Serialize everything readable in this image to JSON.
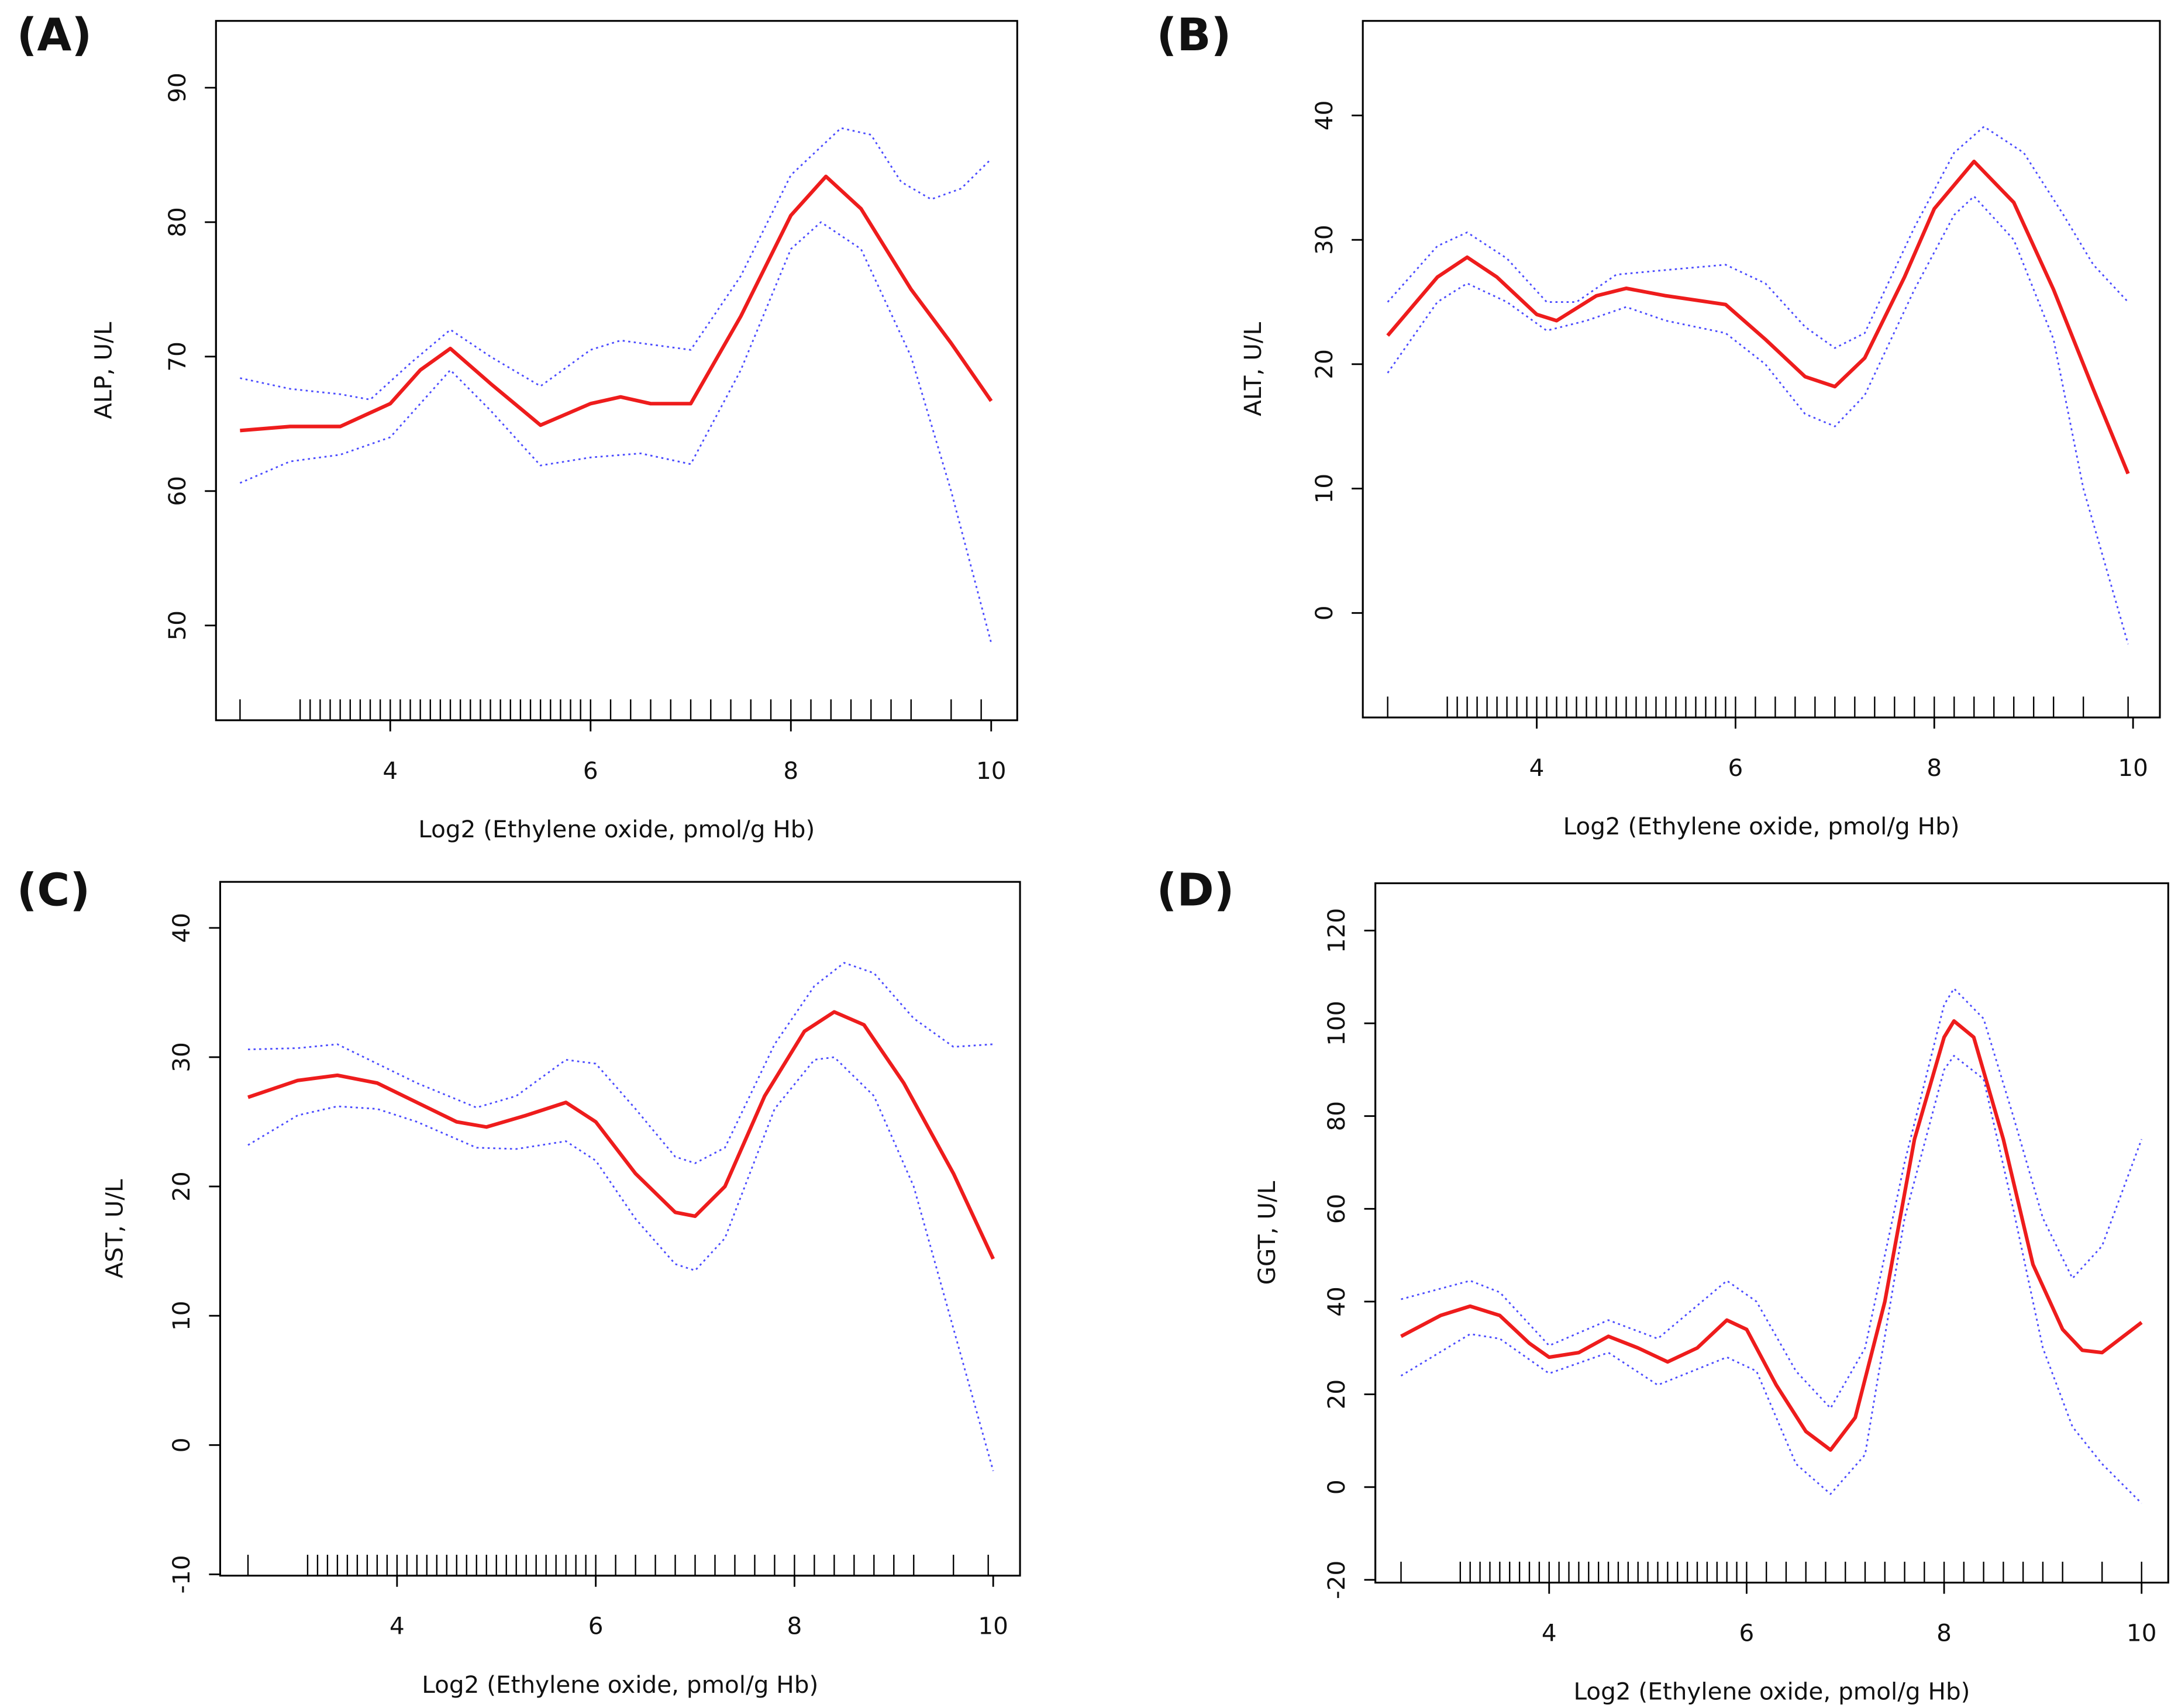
{
  "chart_data": [
    {
      "type": "line",
      "panel_label": "(A)",
      "x_label": "Log2 (Ethylene oxide, pmol/g Hb)",
      "y_label": "ALP, U/L",
      "xlim": [
        2.26,
        10.26
      ],
      "ylim": [
        42.95,
        94.97
      ],
      "xticks": [
        4,
        6,
        8,
        10
      ],
      "yticks": [
        50,
        60,
        70,
        80,
        90
      ],
      "series": [
        {
          "color": "#ee1c1c",
          "dash": "solid",
          "x": [
            2.5,
            3,
            3.5,
            4,
            4.3,
            4.6,
            5,
            5.5,
            6,
            6.3,
            6.6,
            7,
            7.5,
            8,
            8.35,
            8.7,
            9.2,
            9.6,
            10
          ],
          "values": [
            64.5,
            64.8,
            64.8,
            66.5,
            69,
            70.6,
            68,
            64.9,
            66.5,
            67,
            66.5,
            66.5,
            73,
            80.5,
            83.4,
            81,
            75,
            71,
            66.7
          ]
        },
        {
          "color": "#4b4bff",
          "dash": "dotted",
          "x": [
            2.5,
            3,
            3.5,
            3.8,
            4.2,
            4.6,
            5,
            5.5,
            6,
            6.3,
            7,
            7.5,
            8,
            8.5,
            8.8,
            9.1,
            9.4,
            9.7,
            10
          ],
          "values": [
            68.4,
            67.6,
            67.2,
            66.8,
            69.5,
            72,
            70,
            67.8,
            70.5,
            71.2,
            70.5,
            76,
            83.5,
            87,
            86.5,
            83,
            81.7,
            82.5,
            84.7
          ]
        },
        {
          "color": "#4b4bff",
          "dash": "dotted",
          "x": [
            2.5,
            3,
            3.5,
            4,
            4.6,
            5,
            5.5,
            6,
            6.5,
            7,
            7.5,
            8,
            8.3,
            8.7,
            9.2,
            9.6,
            10
          ],
          "values": [
            60.6,
            62.2,
            62.7,
            64,
            69,
            66,
            61.9,
            62.5,
            62.8,
            62,
            69,
            78,
            80,
            78,
            70,
            60,
            48.7
          ]
        }
      ],
      "rug": [
        2.5,
        3.1,
        3.2,
        3.3,
        3.4,
        3.5,
        3.6,
        3.7,
        3.8,
        3.9,
        4.0,
        4.1,
        4.2,
        4.3,
        4.4,
        4.5,
        4.6,
        4.7,
        4.8,
        4.9,
        5.0,
        5.1,
        5.2,
        5.3,
        5.4,
        5.5,
        5.6,
        5.7,
        5.8,
        5.9,
        6.0,
        6.2,
        6.4,
        6.6,
        6.8,
        7.0,
        7.2,
        7.4,
        7.6,
        7.8,
        8.0,
        8.2,
        8.4,
        8.6,
        8.8,
        9.0,
        9.2,
        9.6,
        9.9
      ]
    },
    {
      "type": "line",
      "panel_label": "(B)",
      "x_label": "Log2 (Ethylene oxide, pmol/g Hb)",
      "y_label": "ALT, U/L",
      "xlim": [
        2.25,
        10.27
      ],
      "ylim": [
        -8.4,
        47.6
      ],
      "xticks": [
        4,
        6,
        8,
        10
      ],
      "yticks": [
        0,
        10,
        20,
        30,
        40
      ],
      "series": [
        {
          "color": "#ee1c1c",
          "dash": "solid",
          "x": [
            2.5,
            3,
            3.3,
            3.6,
            4,
            4.2,
            4.6,
            4.9,
            5.3,
            5.9,
            6.3,
            6.7,
            7,
            7.3,
            7.7,
            8,
            8.4,
            8.8,
            9.2,
            9.6,
            9.95
          ],
          "values": [
            22.3,
            27,
            28.6,
            27,
            24,
            23.5,
            25.5,
            26.1,
            25.5,
            24.8,
            22,
            19,
            18.2,
            20.5,
            27,
            32.5,
            36.3,
            33,
            26,
            18,
            11.2
          ]
        },
        {
          "color": "#4b4bff",
          "dash": "dotted",
          "x": [
            2.5,
            3,
            3.3,
            3.7,
            4.1,
            4.4,
            4.8,
            5.2,
            5.9,
            6.3,
            6.7,
            7,
            7.3,
            7.8,
            8.2,
            8.5,
            8.9,
            9.3,
            9.6,
            9.95
          ],
          "values": [
            25,
            29.5,
            30.6,
            28.5,
            25,
            25,
            27.2,
            27.5,
            28,
            26.5,
            23,
            21.3,
            22.5,
            31,
            37,
            39.1,
            37,
            32,
            28,
            25
          ]
        },
        {
          "color": "#4b4bff",
          "dash": "dotted",
          "x": [
            2.5,
            3,
            3.3,
            3.7,
            4.1,
            4.5,
            4.9,
            5.3,
            5.9,
            6.3,
            6.7,
            7,
            7.3,
            7.8,
            8.2,
            8.4,
            8.8,
            9.2,
            9.5,
            9.95
          ],
          "values": [
            19.3,
            25,
            26.5,
            25,
            22.7,
            23.5,
            24.6,
            23.5,
            22.5,
            20,
            16,
            15,
            17.5,
            26,
            32,
            33.5,
            30,
            22,
            10,
            -2.5
          ]
        }
      ],
      "rug": [
        2.5,
        3.1,
        3.2,
        3.3,
        3.4,
        3.5,
        3.6,
        3.7,
        3.8,
        3.9,
        4.0,
        4.1,
        4.2,
        4.3,
        4.4,
        4.5,
        4.6,
        4.7,
        4.8,
        4.9,
        5.0,
        5.1,
        5.2,
        5.3,
        5.4,
        5.5,
        5.6,
        5.7,
        5.8,
        5.9,
        6.0,
        6.2,
        6.4,
        6.6,
        6.8,
        7.0,
        7.2,
        7.4,
        7.6,
        7.8,
        8.0,
        8.2,
        8.4,
        8.6,
        8.8,
        9.0,
        9.2,
        9.5,
        9.95
      ]
    },
    {
      "type": "line",
      "panel_label": "(C)",
      "x_label": "Log2 (Ethylene oxide, pmol/g Hb)",
      "y_label": "AST, U/L",
      "xlim": [
        2.22,
        10.27
      ],
      "ylim": [
        -10.1,
        43.56
      ],
      "xticks": [
        4,
        6,
        8,
        10
      ],
      "yticks": [
        -10,
        0,
        10,
        20,
        30,
        40
      ],
      "series": [
        {
          "color": "#ee1c1c",
          "dash": "solid",
          "x": [
            2.5,
            3,
            3.4,
            3.8,
            4.2,
            4.6,
            4.9,
            5.3,
            5.7,
            6,
            6.4,
            6.8,
            7,
            7.3,
            7.7,
            8.1,
            8.4,
            8.7,
            9.1,
            9.6,
            10
          ],
          "values": [
            26.9,
            28.2,
            28.6,
            28,
            26.5,
            25,
            24.6,
            25.5,
            26.5,
            25,
            21,
            18,
            17.7,
            20,
            27,
            32,
            33.5,
            32.5,
            28,
            21,
            14.4
          ]
        },
        {
          "color": "#4b4bff",
          "dash": "dotted",
          "x": [
            2.5,
            3,
            3.4,
            3.8,
            4.2,
            4.8,
            5.2,
            5.7,
            6,
            6.4,
            6.8,
            7,
            7.3,
            7.8,
            8.2,
            8.5,
            8.8,
            9.2,
            9.6,
            10
          ],
          "values": [
            30.6,
            30.7,
            31,
            29.5,
            28,
            26.1,
            27,
            29.8,
            29.5,
            26,
            22.3,
            21.8,
            23,
            31,
            35.5,
            37.3,
            36.5,
            33,
            30.8,
            31
          ]
        },
        {
          "color": "#4b4bff",
          "dash": "dotted",
          "x": [
            2.5,
            3,
            3.4,
            3.8,
            4.2,
            4.8,
            5.2,
            5.7,
            6,
            6.4,
            6.8,
            7,
            7.3,
            7.8,
            8.2,
            8.4,
            8.8,
            9.2,
            9.6,
            10
          ],
          "values": [
            23.2,
            25.5,
            26.2,
            26,
            25,
            23,
            22.9,
            23.5,
            22,
            17.5,
            14,
            13.5,
            16,
            26,
            29.8,
            30,
            27,
            20,
            9,
            -2
          ]
        }
      ],
      "rug": [
        2.5,
        3.1,
        3.2,
        3.3,
        3.4,
        3.5,
        3.6,
        3.7,
        3.8,
        3.9,
        4.0,
        4.1,
        4.2,
        4.3,
        4.4,
        4.5,
        4.6,
        4.7,
        4.8,
        4.9,
        5.0,
        5.1,
        5.2,
        5.3,
        5.4,
        5.5,
        5.6,
        5.7,
        5.8,
        5.9,
        6.0,
        6.2,
        6.4,
        6.6,
        6.8,
        7.0,
        7.2,
        7.4,
        7.6,
        7.8,
        8.0,
        8.2,
        8.4,
        8.6,
        8.8,
        9.0,
        9.2,
        9.6,
        9.95
      ]
    },
    {
      "type": "line",
      "panel_label": "(D)",
      "x_label": "Log2 (Ethylene oxide, pmol/g Hb)",
      "y_label": "GGT, U/L",
      "xlim": [
        2.24,
        10.27
      ],
      "ylim": [
        -20.6,
        130.2
      ],
      "xticks": [
        4,
        6,
        8,
        10
      ],
      "yticks": [
        -20,
        0,
        20,
        40,
        60,
        80,
        100,
        120
      ],
      "series": [
        {
          "color": "#ee1c1c",
          "dash": "solid",
          "x": [
            2.5,
            2.9,
            3.2,
            3.5,
            3.8,
            4,
            4.3,
            4.6,
            4.9,
            5.2,
            5.5,
            5.8,
            6,
            6.3,
            6.6,
            6.85,
            7.1,
            7.4,
            7.7,
            8,
            8.1,
            8.3,
            8.6,
            8.9,
            9.2,
            9.4,
            9.6,
            10
          ],
          "values": [
            32.5,
            37,
            39,
            37,
            31,
            28,
            29,
            32.5,
            30,
            27,
            30,
            36,
            34,
            22,
            12,
            8,
            15,
            40,
            75,
            97,
            100.5,
            97,
            75,
            48,
            34,
            29.5,
            29,
            35.5
          ]
        },
        {
          "color": "#4b4bff",
          "dash": "dotted",
          "x": [
            2.5,
            3.2,
            3.5,
            4,
            4.6,
            5.1,
            5.8,
            6.1,
            6.5,
            6.85,
            7.2,
            7.6,
            8,
            8.1,
            8.4,
            8.7,
            9,
            9.3,
            9.6,
            10
          ],
          "values": [
            40.5,
            44.5,
            42,
            30.5,
            36,
            32,
            44.5,
            40,
            25,
            17,
            30,
            70,
            104,
            107.5,
            101,
            80,
            58,
            45,
            52,
            75
          ]
        },
        {
          "color": "#4b4bff",
          "dash": "dotted",
          "x": [
            2.5,
            3.2,
            3.5,
            4,
            4.6,
            5.1,
            5.8,
            6.1,
            6.5,
            6.85,
            7.2,
            7.6,
            8,
            8.1,
            8.4,
            8.7,
            9,
            9.3,
            9.6,
            10
          ],
          "values": [
            24,
            33,
            32,
            24.5,
            29,
            22,
            28,
            25,
            5,
            -1.5,
            7,
            58,
            90,
            93,
            88,
            60,
            30,
            13,
            5,
            -3.5
          ]
        }
      ],
      "rug": [
        2.5,
        3.1,
        3.2,
        3.3,
        3.4,
        3.5,
        3.6,
        3.7,
        3.8,
        3.9,
        4.0,
        4.1,
        4.2,
        4.3,
        4.4,
        4.5,
        4.6,
        4.7,
        4.8,
        4.9,
        5.0,
        5.1,
        5.2,
        5.3,
        5.4,
        5.5,
        5.6,
        5.7,
        5.8,
        5.9,
        6.0,
        6.2,
        6.4,
        6.6,
        6.8,
        7.0,
        7.2,
        7.4,
        7.6,
        7.8,
        8.0,
        8.2,
        8.4,
        8.6,
        8.8,
        9.0,
        9.2,
        9.6,
        10
      ]
    }
  ]
}
